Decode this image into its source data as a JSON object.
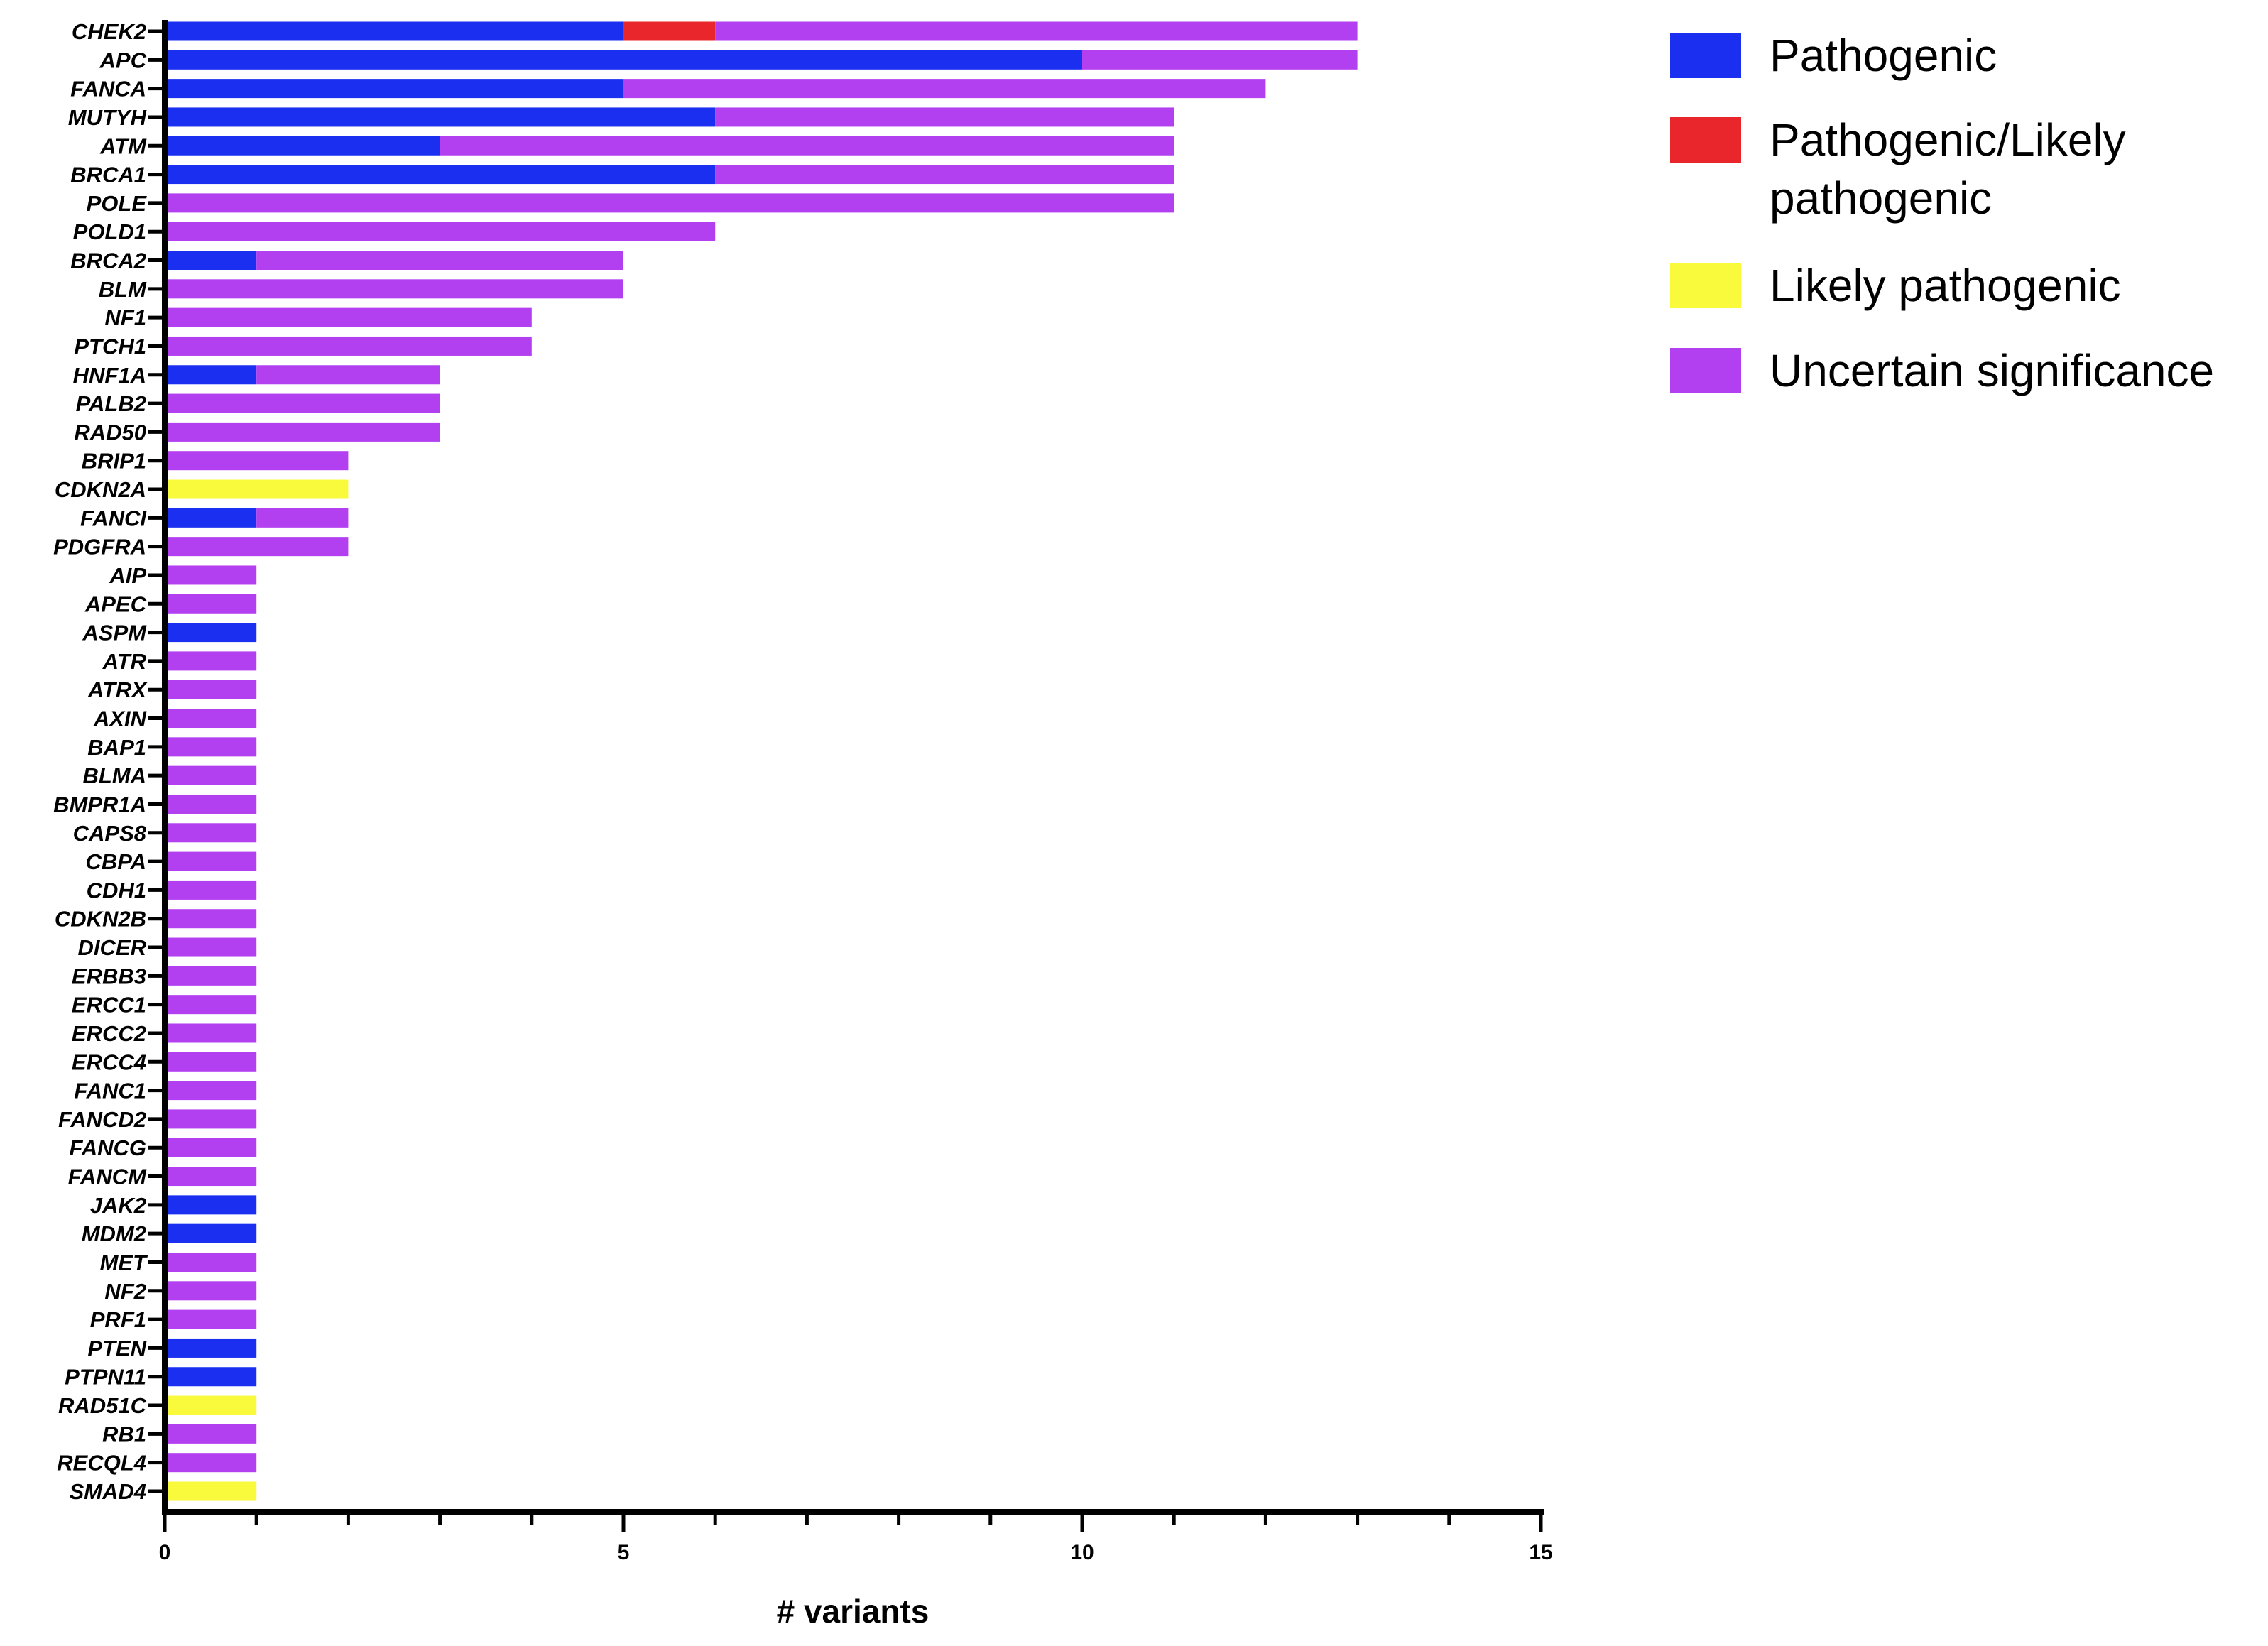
{
  "chart_data": {
    "type": "bar",
    "orientation": "horizontal",
    "stacked": true,
    "title": "",
    "xlabel": "# variants",
    "ylabel": "",
    "xlim": [
      0,
      15
    ],
    "x_major_ticks": [
      0,
      5,
      10,
      15
    ],
    "x_minor_tick_step": 1,
    "grid": false,
    "legend_position": "top-right",
    "categories": [
      "CHEK2",
      "APC",
      "FANCA",
      "MUTYH",
      "ATM",
      "BRCA1",
      "POLE",
      "POLD1",
      "BRCA2",
      "BLM",
      "NF1",
      "PTCH1",
      "HNF1A",
      "PALB2",
      "RAD50",
      "BRIP1",
      "CDKN2A",
      "FANCI",
      "PDGFRA",
      "AIP",
      "APEC",
      "ASPM",
      "ATR",
      "ATRX",
      "AXIN",
      "BAP1",
      "BLMA",
      "BMPR1A",
      "CAPS8",
      "CBPA",
      "CDH1",
      "CDKN2B",
      "DICER",
      "ERBB3",
      "ERCC1",
      "ERCC2",
      "ERCC4",
      "FANC1",
      "FANCD2",
      "FANCG",
      "FANCM",
      "JAK2",
      "MDM2",
      "MET",
      "NF2",
      "PRF1",
      "PTEN",
      "PTPN11",
      "RAD51C",
      "RB1",
      "RECQL4",
      "SMAD4"
    ],
    "series": [
      {
        "name": "Pathogenic",
        "color": "#1a2ff0",
        "values": [
          5,
          10,
          5,
          6,
          3,
          6,
          0,
          0,
          1,
          0,
          0,
          0,
          1,
          0,
          0,
          0,
          0,
          1,
          0,
          0,
          0,
          1,
          0,
          0,
          0,
          0,
          0,
          0,
          0,
          0,
          0,
          0,
          0,
          0,
          0,
          0,
          0,
          0,
          0,
          0,
          0,
          1,
          1,
          0,
          0,
          0,
          1,
          1,
          0,
          0,
          0,
          0
        ]
      },
      {
        "name": "Pathogenic/Likely pathogenic",
        "color": "#e8262b",
        "values": [
          1,
          0,
          0,
          0,
          0,
          0,
          0,
          0,
          0,
          0,
          0,
          0,
          0,
          0,
          0,
          0,
          0,
          0,
          0,
          0,
          0,
          0,
          0,
          0,
          0,
          0,
          0,
          0,
          0,
          0,
          0,
          0,
          0,
          0,
          0,
          0,
          0,
          0,
          0,
          0,
          0,
          0,
          0,
          0,
          0,
          0,
          0,
          0,
          0,
          0,
          0,
          0
        ]
      },
      {
        "name": "Likely pathogenic",
        "color": "#fafa3c",
        "values": [
          0,
          0,
          0,
          0,
          0,
          0,
          0,
          0,
          0,
          0,
          0,
          0,
          0,
          0,
          0,
          0,
          2,
          0,
          0,
          0,
          0,
          0,
          0,
          0,
          0,
          0,
          0,
          0,
          0,
          0,
          0,
          0,
          0,
          0,
          0,
          0,
          0,
          0,
          0,
          0,
          0,
          0,
          0,
          0,
          0,
          0,
          0,
          0,
          1,
          0,
          0,
          1
        ]
      },
      {
        "name": "Uncertain significance",
        "color": "#b23ff0",
        "values": [
          7,
          3,
          7,
          5,
          8,
          5,
          11,
          6,
          4,
          5,
          4,
          4,
          2,
          3,
          3,
          2,
          0,
          1,
          2,
          1,
          1,
          0,
          1,
          1,
          1,
          1,
          1,
          1,
          1,
          1,
          1,
          1,
          1,
          1,
          1,
          1,
          1,
          1,
          1,
          1,
          1,
          0,
          0,
          1,
          1,
          1,
          0,
          0,
          0,
          1,
          1,
          0
        ]
      }
    ],
    "legend": [
      {
        "lines": [
          "Pathogenic"
        ],
        "color": "#1a2ff0"
      },
      {
        "lines": [
          "Pathogenic/Likely",
          "pathogenic"
        ],
        "color": "#e8262b"
      },
      {
        "lines": [
          "Likely pathogenic"
        ],
        "color": "#fafa3c"
      },
      {
        "lines": [
          "Uncertain significance"
        ],
        "color": "#b23ff0"
      }
    ]
  }
}
